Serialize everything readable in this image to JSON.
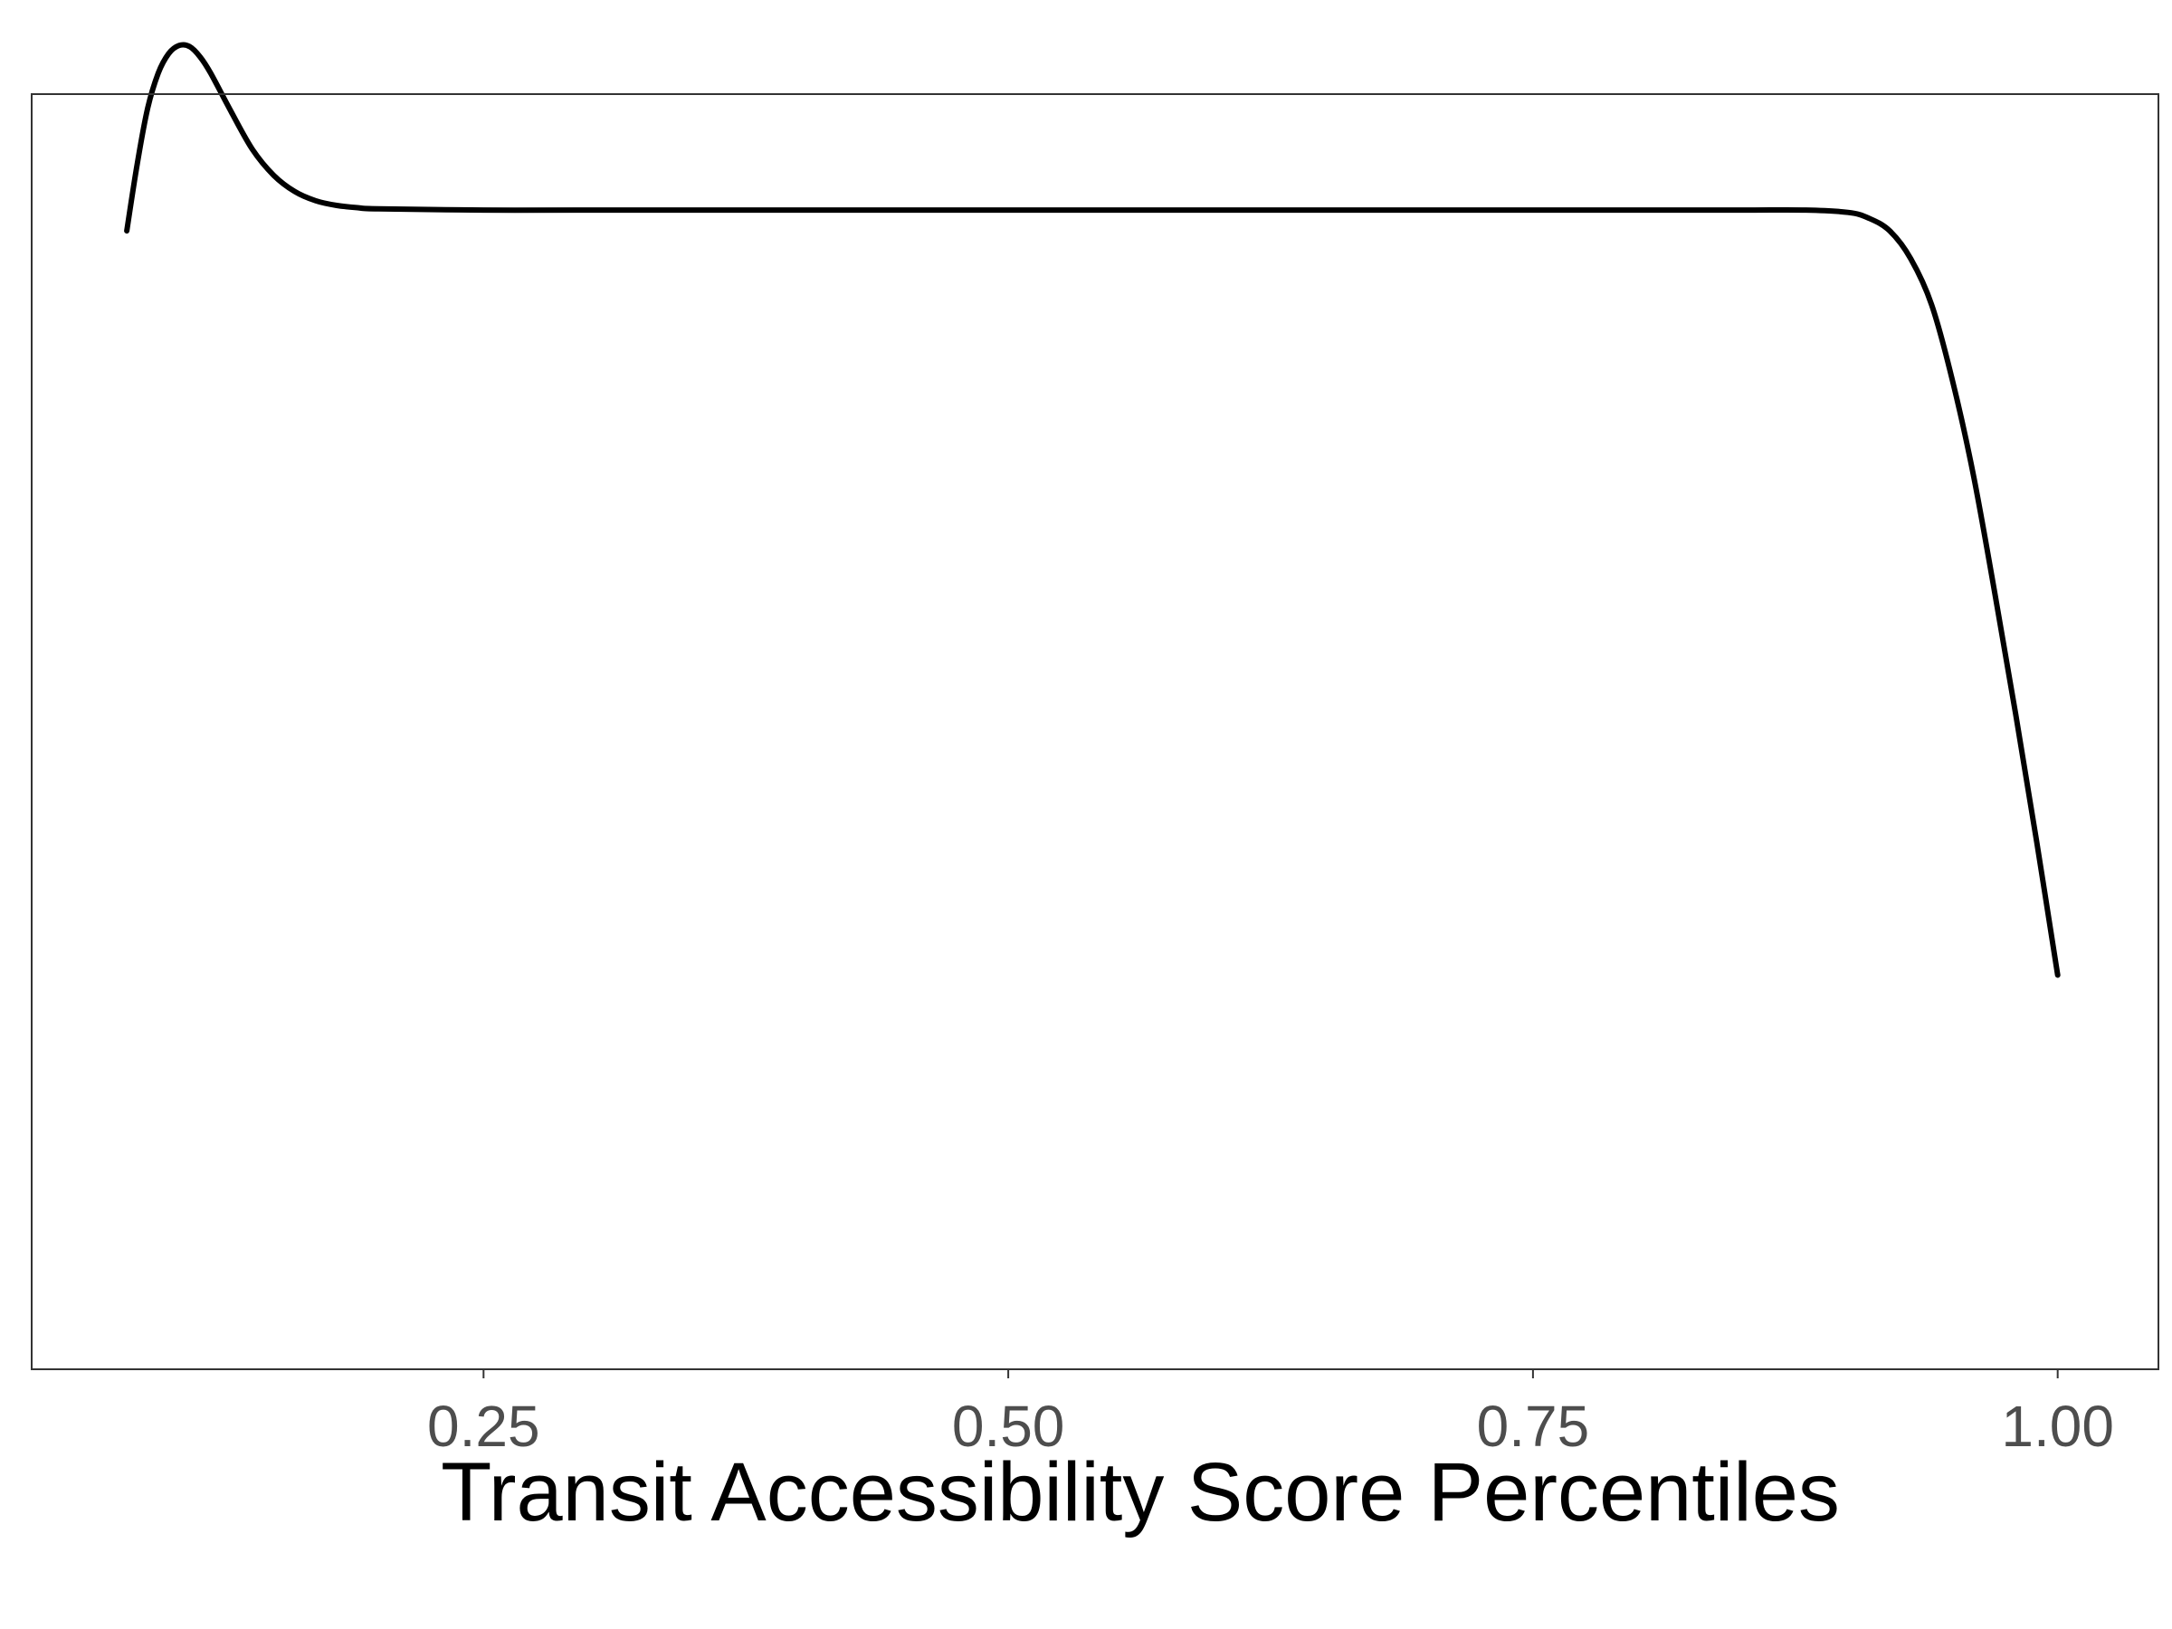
{
  "chart_data": {
    "type": "line",
    "title": "",
    "xlabel": "Transit Accessibility Score Percentiles",
    "ylabel": "",
    "xlim": [
      0.0347,
      1.048
    ],
    "ylim": [
      0,
      1.1
    ],
    "x_ticks": [
      0.25,
      0.5,
      0.75,
      1.0
    ],
    "x_tick_labels": [
      "0.25",
      "0.50",
      "0.75",
      "1.00"
    ],
    "y_ticks_shown": false,
    "grid": false,
    "legend": "none",
    "colors": {
      "line": "#000000",
      "panel_border": "#333333",
      "tick_label": "#4d4d4d"
    },
    "series": [
      {
        "x": [
          0.08,
          0.085,
          0.09,
          0.095,
          0.1,
          0.105,
          0.11,
          0.115,
          0.12,
          0.13,
          0.14,
          0.15,
          0.16,
          0.17,
          0.18,
          0.19,
          0.2,
          0.25,
          0.3,
          0.4,
          0.5,
          0.6,
          0.7,
          0.75,
          0.8,
          0.85,
          0.88,
          0.9,
          0.91,
          0.92,
          0.93,
          0.94,
          0.95,
          0.96,
          0.97,
          0.98,
          0.99,
          1.0
        ],
        "y": [
          0.982,
          1.04,
          1.088,
          1.118,
          1.135,
          1.142,
          1.141,
          1.132,
          1.118,
          1.084,
          1.052,
          1.03,
          1.016,
          1.008,
          1.004,
          1.002,
          1.001,
          1.0,
          1.0,
          1.0,
          1.0,
          1.0,
          1.0,
          1.0,
          1.0,
          1.0,
          1.0,
          0.998,
          0.993,
          0.982,
          0.958,
          0.918,
          0.852,
          0.77,
          0.67,
          0.565,
          0.455,
          0.34
        ]
      }
    ]
  }
}
